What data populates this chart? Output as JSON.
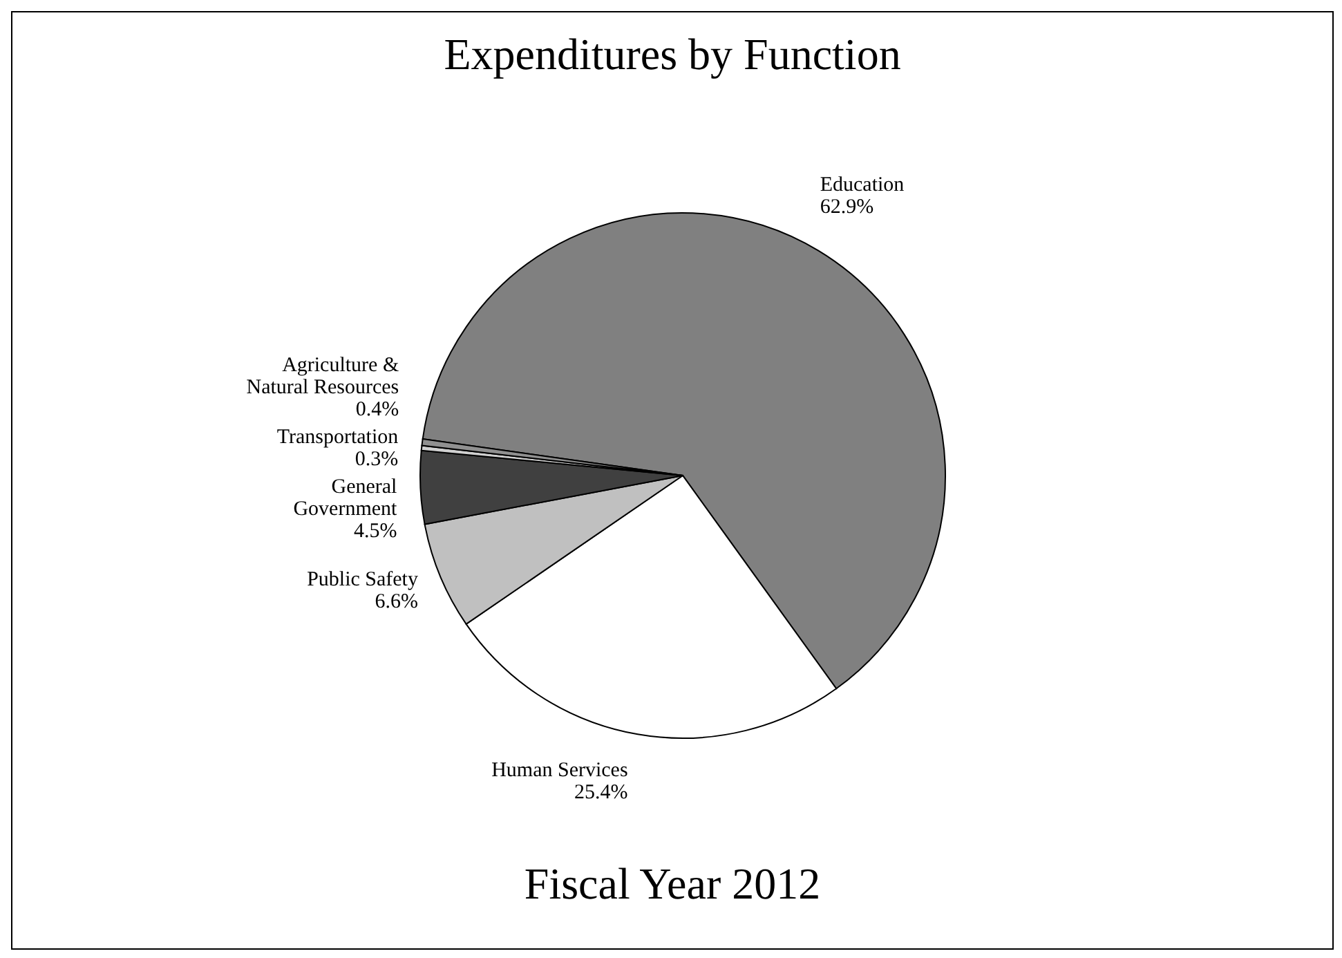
{
  "chart_data": {
    "type": "pie",
    "title": "Expenditures by Function",
    "subtitle": "Fiscal Year 2012",
    "categories": [
      "Education",
      "Human Services",
      "Public Safety",
      "General Government",
      "Transportation",
      "Agriculture & Natural Resources"
    ],
    "values": [
      62.9,
      25.4,
      6.6,
      4.5,
      0.3,
      0.4
    ],
    "value_labels": [
      "62.9%",
      "25.4%",
      "6.6%",
      "4.5%",
      "0.3%",
      "0.4%"
    ],
    "colors": [
      "#808080",
      "#ffffff",
      "#c0c0c0",
      "#404040",
      "#d0d0d0",
      "#909090"
    ]
  }
}
